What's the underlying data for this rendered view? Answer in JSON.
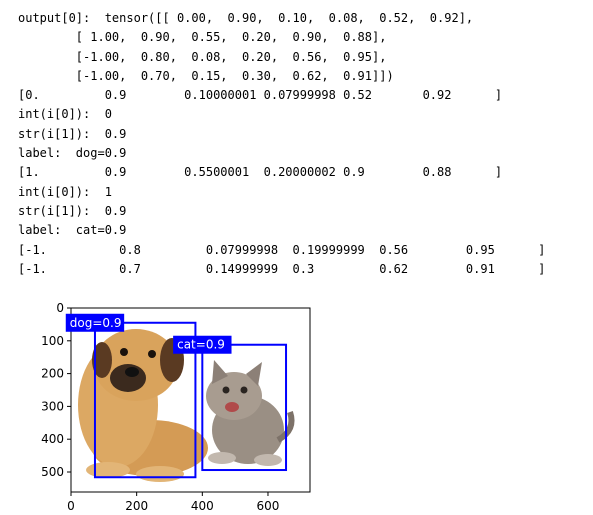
{
  "output_lines": [
    "output[0]:  tensor([[ 0.00,  0.90,  0.10,  0.08,  0.52,  0.92],",
    "        [ 1.00,  0.90,  0.55,  0.20,  0.90,  0.88],",
    "        [-1.00,  0.80,  0.08,  0.20,  0.56,  0.95],",
    "        [-1.00,  0.70,  0.15,  0.30,  0.62,  0.91]])",
    "[0.         0.9        0.10000001 0.07999998 0.52       0.92      ]",
    "int(i[0]):  0",
    "str(i[1]):  0.9",
    "label:  dog=0.9",
    "[1.         0.9        0.5500001  0.20000002 0.9        0.88      ]",
    "int(i[0]):  1",
    "str(i[1]):  0.9",
    "label:  cat=0.9",
    "[-1.          0.8         0.07999998  0.19999999  0.56        0.95      ]",
    "[-1.          0.7         0.14999999  0.3         0.62        0.91      ]"
  ],
  "chart_data": {
    "type": "image-with-bounding-boxes",
    "image_width": 728,
    "image_height": 561,
    "x_ticks": [
      0,
      200,
      400,
      600
    ],
    "y_ticks": [
      0,
      100,
      200,
      300,
      400,
      500
    ],
    "boxes": [
      {
        "label": "dog=0.9",
        "x1": 73,
        "y1": 45,
        "x2": 379,
        "y2": 516
      },
      {
        "label": "cat=0.9",
        "x1": 400,
        "y1": 112,
        "x2": 655,
        "y2": 494
      }
    ],
    "box_color": "#0000ff"
  },
  "colors": {
    "dog_fur": "#d9a35c",
    "dog_dark": "#6b4226",
    "cat_fur": "#9a8f84",
    "cat_dark": "#5a5049"
  }
}
